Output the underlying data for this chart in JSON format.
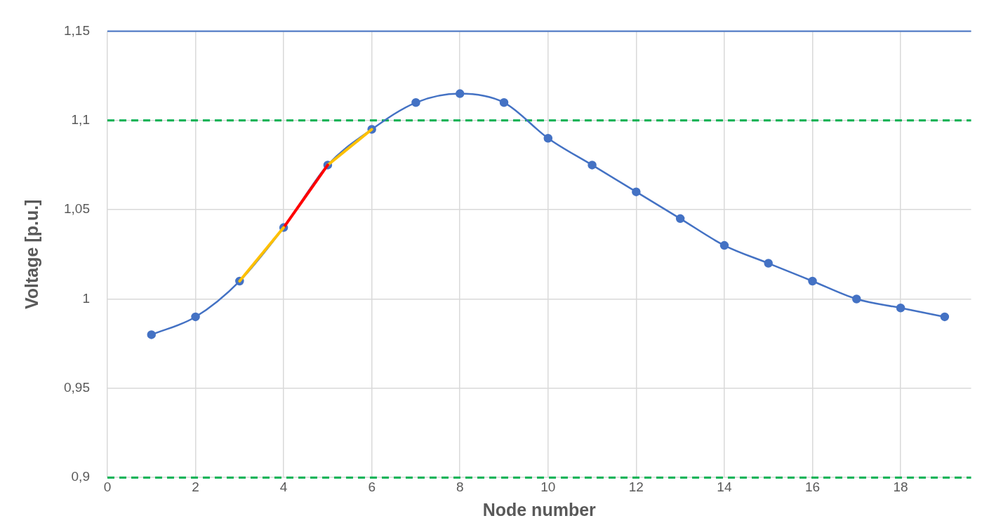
{
  "chart_data": {
    "type": "line",
    "xlabel": "Node number",
    "ylabel": "Voltage [p.u.]",
    "xlim": [
      0,
      19.6
    ],
    "xticks": [
      0,
      2,
      4,
      6,
      8,
      10,
      12,
      14,
      16,
      18
    ],
    "ylim": [
      0.9,
      1.15
    ],
    "yticks": [
      {
        "value": 0.9,
        "label": "0,9"
      },
      {
        "value": 0.95,
        "label": "0,95"
      },
      {
        "value": 1,
        "label": "1"
      },
      {
        "value": 1.05,
        "label": "1,05"
      },
      {
        "value": 1.1,
        "label": "1,1"
      },
      {
        "value": 1.15,
        "label": "1,15"
      }
    ],
    "x": [
      1,
      2,
      3,
      4,
      5,
      6,
      7,
      8,
      9,
      10,
      11,
      12,
      13,
      14,
      15,
      16,
      17,
      18,
      19
    ],
    "series": [
      {
        "color": "#4472c4",
        "marker": "circle",
        "values": [
          0.98,
          0.99,
          1.01,
          1.04,
          1.075,
          1.095,
          1.11,
          1.115,
          1.11,
          1.09,
          1.075,
          1.06,
          1.045,
          1.03,
          1.02,
          1.01,
          1.0,
          0.995,
          0.99
        ]
      },
      {
        "color": "#ffc000",
        "marker": "none",
        "x": [
          3,
          4
        ],
        "values": [
          1.01,
          1.04
        ]
      },
      {
        "color": "#ff0000",
        "marker": "none",
        "x": [
          4,
          5
        ],
        "values": [
          1.04,
          1.075
        ]
      },
      {
        "color": "#ffc000",
        "marker": "none",
        "x": [
          5,
          6
        ],
        "values": [
          1.075,
          1.095
        ]
      }
    ],
    "ref_lines": [
      {
        "axis": "y",
        "value": 1.1,
        "color": "#00b050",
        "line_style": "dashed"
      },
      {
        "axis": "y",
        "value": 0.9,
        "color": "#00b050",
        "line_style": "dashed"
      },
      {
        "axis": "y",
        "value": 1.15,
        "color": "#4472c4",
        "line_style": "solid"
      }
    ],
    "grid": true,
    "legend": false
  }
}
